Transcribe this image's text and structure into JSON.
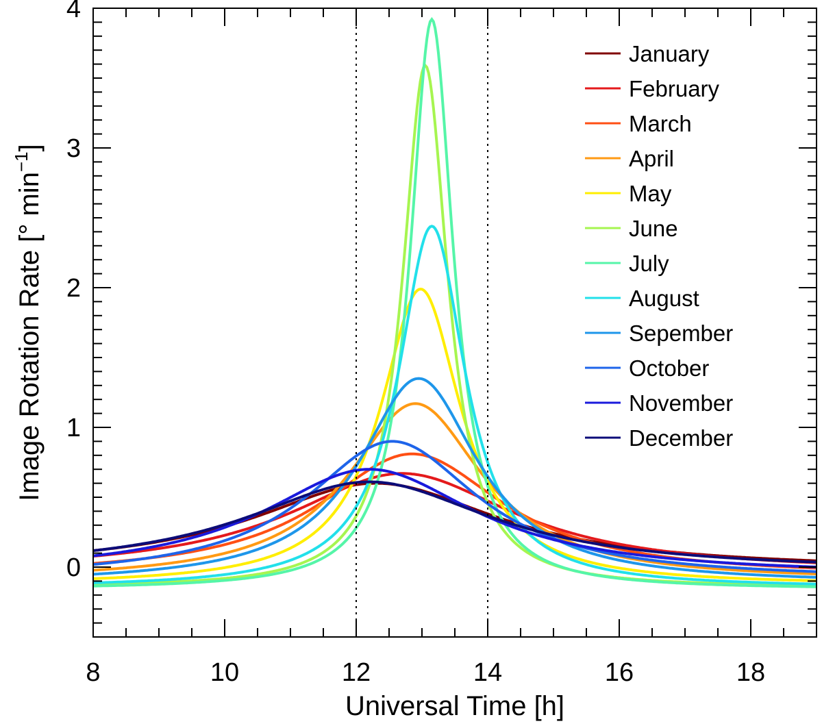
{
  "chart_data": {
    "type": "line",
    "title": "",
    "xlabel": "Universal Time [h]",
    "ylabel_main": "Image Rotation Rate [",
    "ylabel_unit": "° min",
    "ylabel_exp": "−1",
    "ylabel_close": "]",
    "xlim": [
      8,
      19
    ],
    "ylim": [
      -0.5,
      4
    ],
    "xticks": [
      8,
      10,
      12,
      14,
      16,
      18
    ],
    "xtick_labels": [
      "8",
      "10",
      "12",
      "14",
      "16",
      "18"
    ],
    "yticks": [
      0,
      1,
      2,
      3,
      4
    ],
    "ytick_labels": [
      "0",
      "1",
      "2",
      "3",
      "4"
    ],
    "vlines": [
      12,
      14
    ],
    "legend_position": "top-right",
    "series": [
      {
        "name": "January",
        "color": "#800000",
        "peak_x": 12.3,
        "peak_y": 0.6,
        "width": 2.3,
        "base": -0.02
      },
      {
        "name": "February",
        "color": "#e41a1c",
        "peak_x": 12.7,
        "peak_y": 0.67,
        "width": 2.1,
        "base": -0.04
      },
      {
        "name": "March",
        "color": "#ff4f14",
        "peak_x": 12.85,
        "peak_y": 0.81,
        "width": 1.7,
        "base": -0.07
      },
      {
        "name": "April",
        "color": "#ff9a14",
        "peak_x": 12.9,
        "peak_y": 1.17,
        "width": 1.25,
        "base": -0.1
      },
      {
        "name": "May",
        "color": "#ffee00",
        "peak_x": 12.98,
        "peak_y": 1.99,
        "width": 0.75,
        "base": -0.13
      },
      {
        "name": "June",
        "color": "#a6f550",
        "peak_x": 13.05,
        "peak_y": 3.59,
        "width": 0.42,
        "base": -0.15
      },
      {
        "name": "July",
        "color": "#55f5a8",
        "peak_x": 13.15,
        "peak_y": 3.92,
        "width": 0.4,
        "base": -0.16
      },
      {
        "name": "August",
        "color": "#22e0ea",
        "peak_x": 13.15,
        "peak_y": 2.44,
        "width": 0.62,
        "base": -0.15
      },
      {
        "name": "Sepember",
        "color": "#1e96ea",
        "peak_x": 12.95,
        "peak_y": 1.35,
        "width": 1.1,
        "base": -0.12
      },
      {
        "name": "October",
        "color": "#1e64ea",
        "peak_x": 12.55,
        "peak_y": 0.9,
        "width": 1.6,
        "base": -0.09
      },
      {
        "name": "November",
        "color": "#1a1adc",
        "peak_x": 12.2,
        "peak_y": 0.7,
        "width": 2.0,
        "base": -0.06
      },
      {
        "name": "December",
        "color": "#0c0c78",
        "peak_x": 12.2,
        "peak_y": 0.61,
        "width": 2.3,
        "base": -0.03
      }
    ]
  }
}
